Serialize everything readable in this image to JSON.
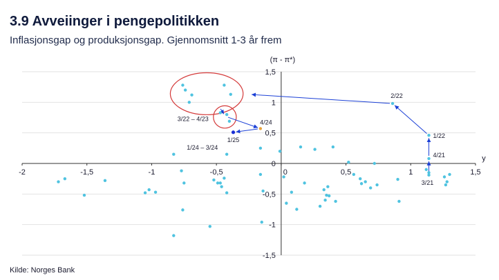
{
  "header": {
    "title": "3.9 Avveiinger i pengepolitikken",
    "subtitle": "Inflasjonsgap og produksjonsgap. Gjennomsnitt 1-3 år frem",
    "source": "Kilde: Norges Bank"
  },
  "chart_data": {
    "type": "scatter",
    "xlabel": "y",
    "ylabel": "(π - π*)",
    "xlim": [
      -2,
      1.5
    ],
    "ylim": [
      -1.5,
      1.5
    ],
    "grid": "horizontal",
    "x_ticks": [
      "-2",
      "-1,5",
      "-1",
      "-0,5",
      "0",
      "0,5",
      "1",
      "1,5"
    ],
    "y_ticks": [
      "1,5",
      "1",
      "0,5",
      "0",
      "-0,5",
      "-1",
      "-1,5"
    ],
    "colors": {
      "points": "#4fc3e0",
      "highlight": "#1a2fd6",
      "arrow": "#1a3fd6",
      "ellipse": "#d43a3a",
      "grid": "#e2e2e2"
    },
    "points": [
      [
        -1.72,
        -0.3
      ],
      [
        -1.67,
        -0.25
      ],
      [
        -1.52,
        -0.52
      ],
      [
        -1.36,
        -0.28
      ],
      [
        -1.05,
        -0.48
      ],
      [
        -1.02,
        -0.43
      ],
      [
        -0.97,
        -0.47
      ],
      [
        -0.83,
        0.15
      ],
      [
        -0.77,
        -0.12
      ],
      [
        -0.76,
        -0.76
      ],
      [
        -0.75,
        -0.32
      ],
      [
        -0.83,
        -1.18
      ],
      [
        -0.55,
        -1.03
      ],
      [
        -0.52,
        -0.27
      ],
      [
        -0.49,
        -0.32
      ],
      [
        -0.47,
        -0.32
      ],
      [
        -0.46,
        -0.38
      ],
      [
        -0.44,
        -0.24
      ],
      [
        -0.42,
        -0.48
      ],
      [
        -0.42,
        0.15
      ],
      [
        -0.16,
        -0.18
      ],
      [
        -0.14,
        -0.45
      ],
      [
        -0.15,
        -0.96
      ],
      [
        -0.16,
        0.25
      ],
      [
        -0.01,
        0.2
      ],
      [
        0.02,
        -0.22
      ],
      [
        0.04,
        -0.65
      ],
      [
        0.08,
        -0.47
      ],
      [
        0.12,
        -0.75
      ],
      [
        0.15,
        0.27
      ],
      [
        0.18,
        -0.32
      ],
      [
        0.26,
        0.23
      ],
      [
        0.3,
        -0.7
      ],
      [
        0.33,
        -0.43
      ],
      [
        0.34,
        -0.6
      ],
      [
        0.35,
        -0.52
      ],
      [
        0.36,
        -0.38
      ],
      [
        0.37,
        -0.53
      ],
      [
        0.4,
        0.27
      ],
      [
        0.42,
        -0.62
      ],
      [
        0.52,
        0.02
      ],
      [
        0.56,
        -0.18
      ],
      [
        0.61,
        -0.25
      ],
      [
        0.62,
        -0.33
      ],
      [
        0.65,
        -0.3
      ],
      [
        0.69,
        -0.4
      ],
      [
        0.72,
        0.0
      ],
      [
        0.74,
        -0.35
      ],
      [
        0.9,
        -0.26
      ],
      [
        0.91,
        -0.62
      ],
      [
        1.12,
        -0.1
      ],
      [
        1.14,
        -0.15
      ],
      [
        1.26,
        -0.22
      ],
      [
        1.27,
        -0.35
      ],
      [
        1.28,
        -0.3
      ],
      [
        1.3,
        -0.18
      ]
    ],
    "cluster_2022_2023": [
      [
        -0.76,
        1.28
      ],
      [
        -0.74,
        1.2
      ],
      [
        -0.69,
        1.12
      ],
      [
        -0.71,
        1.0
      ],
      [
        -0.44,
        1.28
      ],
      [
        -0.39,
        1.13
      ]
    ],
    "cluster_2024": [
      [
        -0.47,
        0.83
      ],
      [
        -0.42,
        0.8
      ],
      [
        -0.4,
        0.69
      ]
    ],
    "path": [
      {
        "label": "3/21",
        "x": 1.14,
        "y": -0.19
      },
      {
        "label": "4/21",
        "x": 1.14,
        "y": 0.08
      },
      {
        "label": "1/22",
        "x": 1.14,
        "y": 0.46
      },
      {
        "label": "2/22",
        "x": 0.86,
        "y": 0.98
      },
      {
        "label": "3/22 – 4/23",
        "x": -0.58,
        "y": 1.18
      },
      {
        "label": "1/24 – 3/24",
        "x": -0.43,
        "y": 0.77
      },
      {
        "label": "4/24",
        "x": -0.16,
        "y": 0.57
      },
      {
        "label": "1/25",
        "x": -0.37,
        "y": 0.51
      }
    ]
  }
}
